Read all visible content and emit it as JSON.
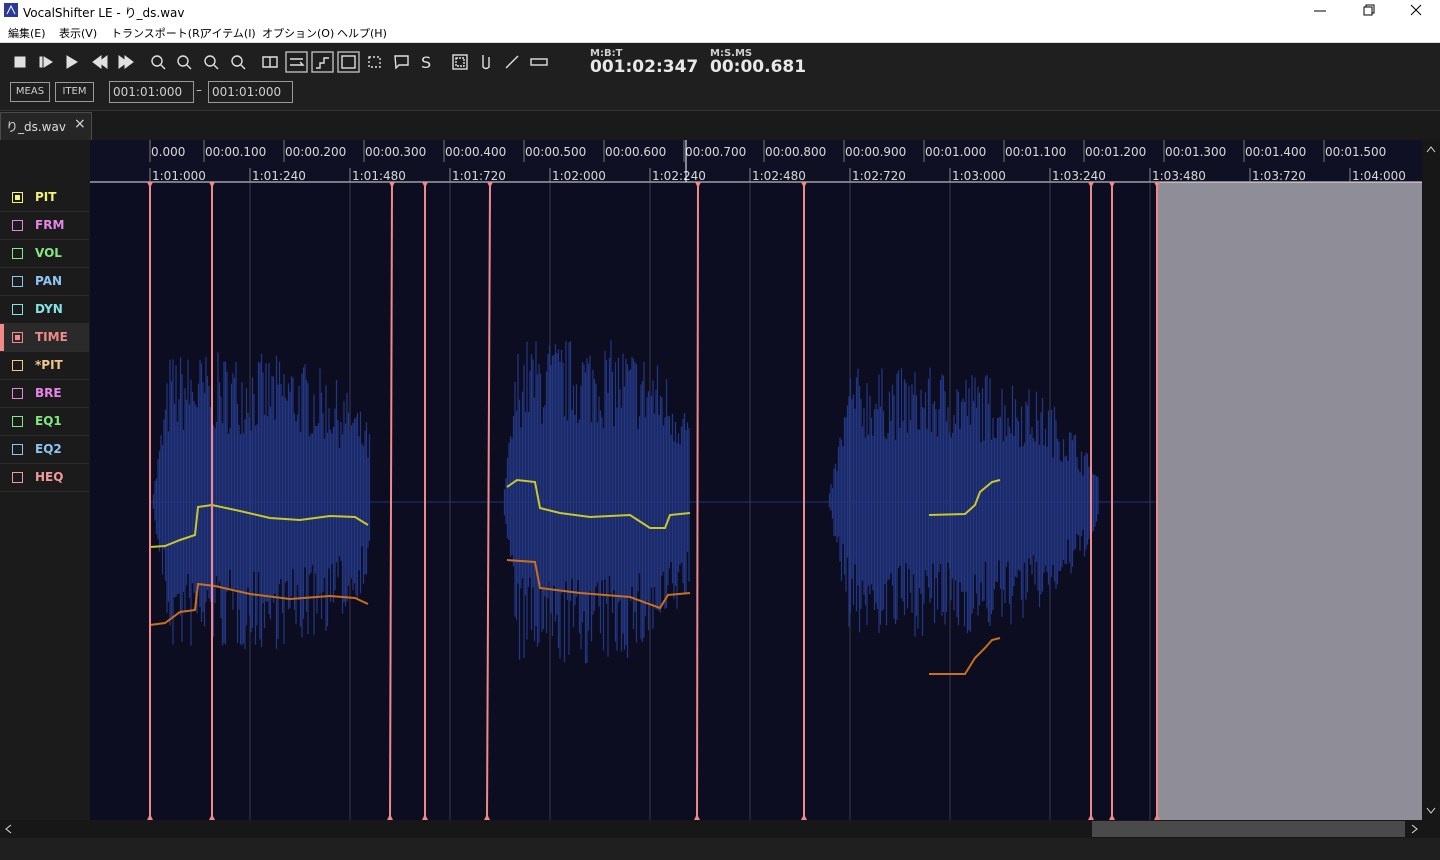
{
  "window": {
    "title": "VocalShifter LE - り_ds.wav"
  },
  "menu": [
    "編集(E)",
    "表示(V)",
    "トランスポート(R)",
    "アイテム(I)",
    "オプション(O)",
    "ヘルプ(H)"
  ],
  "toolbar": {
    "icon_text": "S",
    "counters": [
      {
        "label": "M:B:T",
        "value": "001:02:347"
      },
      {
        "label": "M:S.MS",
        "value": "00:00.681"
      }
    ],
    "buttons": [
      "MEAS",
      "ITEM"
    ],
    "range": {
      "start": "001:01:000",
      "separator": "–",
      "end": "001:01:000"
    }
  },
  "tab": {
    "label": "り_ds.wav",
    "close": "×"
  },
  "tracks": [
    {
      "label": "PIT",
      "color": "#f2f27a",
      "checked": true
    },
    {
      "label": "FRM",
      "color": "#e784e7"
    },
    {
      "label": "VOL",
      "color": "#84e784"
    },
    {
      "label": "PAN",
      "color": "#8cc6f2"
    },
    {
      "label": "DYN",
      "color": "#84e4e4"
    },
    {
      "label": "TIME",
      "color": "#f28a8a",
      "checked": true,
      "selected": true
    },
    {
      "label": "*PIT",
      "color": "#f2c88a"
    },
    {
      "label": "BRE",
      "color": "#e784e7"
    },
    {
      "label": "EQ1",
      "color": "#84e784"
    },
    {
      "label": "EQ2",
      "color": "#8cc6f2"
    },
    {
      "label": "HEQ",
      "color": "#f29a9a"
    }
  ],
  "ruler": {
    "time_labels": [
      "0.000",
      "00:00.100",
      "00:00.200",
      "00:00.300",
      "00:00.400",
      "00:00.500",
      "00:00.600",
      "00:00.700",
      "00:00.800",
      "00:00.900",
      "00:01.000",
      "00:01.100",
      "00:01.200",
      "00:01.300",
      "00:01.400",
      "00:01.500"
    ],
    "measure_labels": [
      "1:01:000",
      "1:01:240",
      "1:01:480",
      "1:01:720",
      "1:02:000",
      "1:02:240",
      "1:02:480",
      "1:02:720",
      "1:03:000",
      "1:03:240",
      "1:03:480",
      "1:03:720",
      "1:04:000"
    ]
  }
}
